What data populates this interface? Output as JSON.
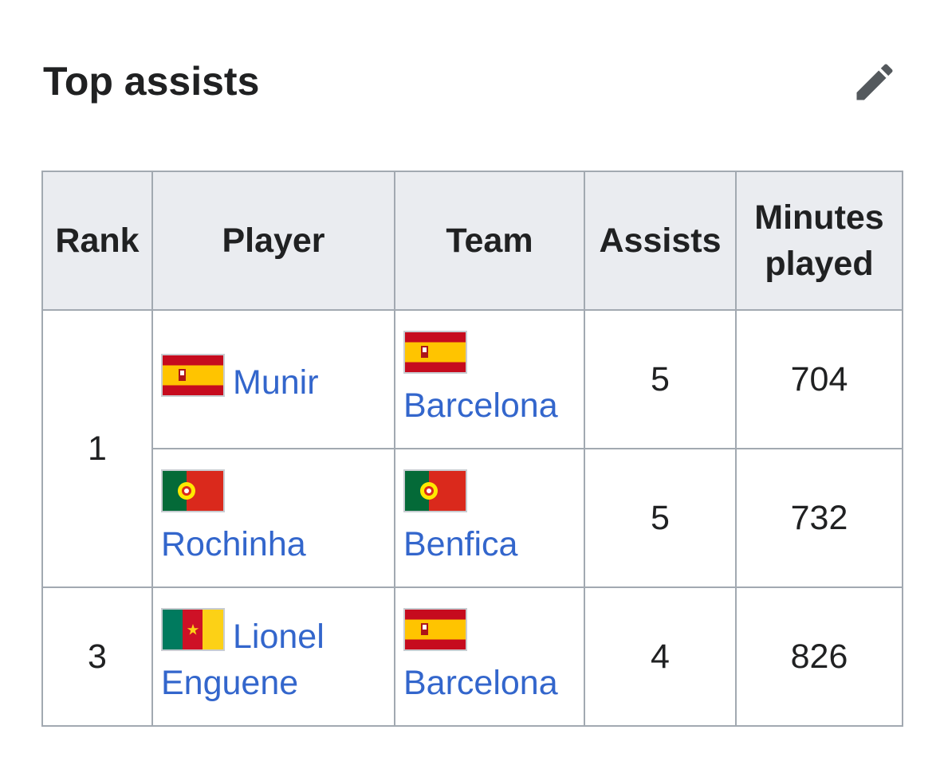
{
  "section": {
    "title": "Top assists"
  },
  "edit": {
    "icon": "pencil-icon"
  },
  "table": {
    "headers": {
      "rank": "Rank",
      "player": "Player",
      "team": "Team",
      "assists": "Assists",
      "minutes": "Minutes played"
    },
    "rows": [
      {
        "rank": "1",
        "player": "Munir",
        "player_flag": "spain-flag-icon",
        "team": "Barcelona",
        "team_flag": "spain-flag-icon",
        "assists": "5",
        "minutes": "704"
      },
      {
        "player": "Rochinha",
        "player_flag": "portugal-flag-icon",
        "team": "Benfica",
        "team_flag": "portugal-flag-icon",
        "assists": "5",
        "minutes": "732"
      },
      {
        "rank": "3",
        "player": "Lionel Enguene",
        "player_flag": "cameroon-flag-icon",
        "team": "Barcelona",
        "team_flag": "spain-flag-icon",
        "assists": "4",
        "minutes": "826"
      }
    ]
  },
  "colors": {
    "link": "#3366cc",
    "header_bg": "#eaecf0",
    "border": "#a2a9b1",
    "text": "#202122"
  }
}
